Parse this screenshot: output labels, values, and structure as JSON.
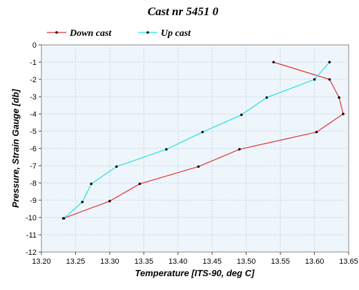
{
  "chart_data": {
    "type": "line",
    "title": "Cast nr 5451 0",
    "xlabel": "Temperature [ITS-90, deg C]",
    "ylabel": "Pressure, Strain Gauge [db]",
    "xlim": [
      13.2,
      13.65
    ],
    "ylim": [
      -12,
      0
    ],
    "x_ticks": [
      "13.20",
      "13.25",
      "13.30",
      "13.35",
      "13.40",
      "13.45",
      "13.50",
      "13.55",
      "13.60",
      "13.65"
    ],
    "y_ticks": [
      "0",
      "-1",
      "-2",
      "-3",
      "-4",
      "-5",
      "-6",
      "-7",
      "-8",
      "-9",
      "-10",
      "-11",
      "-12"
    ],
    "grid": true,
    "legend_position": "top",
    "series": [
      {
        "name": "Down cast",
        "color": "#e03030",
        "points": [
          [
            13.54,
            -1.0
          ],
          [
            13.622,
            -2.0
          ],
          [
            13.636,
            -3.05
          ],
          [
            13.642,
            -4.0
          ],
          [
            13.603,
            -5.05
          ],
          [
            13.49,
            -6.05
          ],
          [
            13.43,
            -7.05
          ],
          [
            13.344,
            -8.05
          ],
          [
            13.3,
            -9.05
          ],
          [
            13.232,
            -10.05
          ]
        ]
      },
      {
        "name": "Up cast",
        "color": "#22e0e0",
        "points": [
          [
            13.622,
            -1.0
          ],
          [
            13.6,
            -2.0
          ],
          [
            13.53,
            -3.05
          ],
          [
            13.493,
            -4.05
          ],
          [
            13.436,
            -5.05
          ],
          [
            13.383,
            -6.05
          ],
          [
            13.31,
            -7.05
          ],
          [
            13.273,
            -8.05
          ],
          [
            13.26,
            -9.1
          ],
          [
            13.233,
            -10.05
          ]
        ]
      }
    ]
  }
}
